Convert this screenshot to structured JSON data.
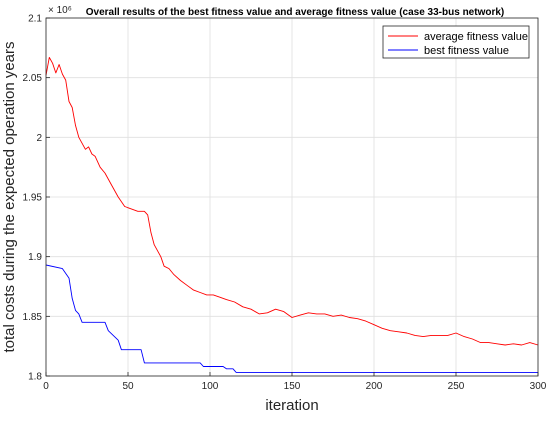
{
  "chart_data": {
    "type": "line",
    "title": "Overall results of the best fitness value and average fitness value (case 33-bus network)",
    "xlabel": "iteration",
    "ylabel": "total costs during the expected operation years",
    "y_multiplier_label": "× 10⁶",
    "xlim": [
      0,
      300
    ],
    "ylim": [
      1.8,
      2.1
    ],
    "xticks": [
      0,
      50,
      100,
      150,
      200,
      250,
      300
    ],
    "xtick_labels": [
      "0",
      "50",
      "100",
      "150",
      "200",
      "250",
      "300"
    ],
    "yticks": [
      1.8,
      1.85,
      1.9,
      1.95,
      2.0,
      2.05,
      2.1
    ],
    "ytick_labels": [
      "1.8",
      "1.85",
      "1.9",
      "1.95",
      "2",
      "2.05",
      "2.1"
    ],
    "grid": true,
    "legend_position": "top-right",
    "series": [
      {
        "name": "average fitness value",
        "color": "#ff0000",
        "x": [
          0,
          2,
          4,
          6,
          8,
          10,
          12,
          14,
          16,
          18,
          20,
          22,
          24,
          26,
          28,
          30,
          33,
          36,
          40,
          44,
          48,
          52,
          56,
          60,
          62,
          64,
          66,
          68,
          70,
          72,
          75,
          78,
          82,
          86,
          90,
          94,
          98,
          102,
          106,
          110,
          115,
          120,
          125,
          130,
          135,
          140,
          145,
          150,
          155,
          160,
          165,
          170,
          175,
          180,
          185,
          190,
          195,
          200,
          205,
          210,
          215,
          220,
          225,
          230,
          235,
          240,
          245,
          250,
          255,
          260,
          265,
          270,
          275,
          280,
          285,
          290,
          295,
          300
        ],
        "values": [
          2.052,
          2.067,
          2.062,
          2.054,
          2.061,
          2.053,
          2.048,
          2.03,
          2.025,
          2.01,
          2.0,
          1.995,
          1.99,
          1.992,
          1.986,
          1.984,
          1.975,
          1.97,
          1.96,
          1.95,
          1.942,
          1.94,
          1.938,
          1.938,
          1.935,
          1.92,
          1.91,
          1.905,
          1.9,
          1.892,
          1.89,
          1.885,
          1.88,
          1.876,
          1.872,
          1.87,
          1.868,
          1.868,
          1.866,
          1.864,
          1.862,
          1.858,
          1.856,
          1.852,
          1.853,
          1.856,
          1.854,
          1.849,
          1.851,
          1.853,
          1.852,
          1.852,
          1.85,
          1.851,
          1.849,
          1.848,
          1.846,
          1.843,
          1.84,
          1.838,
          1.837,
          1.836,
          1.834,
          1.833,
          1.834,
          1.834,
          1.834,
          1.836,
          1.833,
          1.831,
          1.828,
          1.828,
          1.827,
          1.826,
          1.827,
          1.826,
          1.828,
          1.826
        ]
      },
      {
        "name": "best fitness value",
        "color": "#0000ff",
        "x": [
          0,
          10,
          14,
          16,
          18,
          20,
          22,
          36,
          38,
          44,
          46,
          58,
          60,
          94,
          96,
          108,
          110,
          114,
          116,
          300
        ],
        "values": [
          1.893,
          1.89,
          1.882,
          1.865,
          1.855,
          1.852,
          1.845,
          1.845,
          1.838,
          1.83,
          1.822,
          1.822,
          1.811,
          1.811,
          1.808,
          1.808,
          1.806,
          1.806,
          1.803,
          1.803
        ]
      }
    ]
  }
}
